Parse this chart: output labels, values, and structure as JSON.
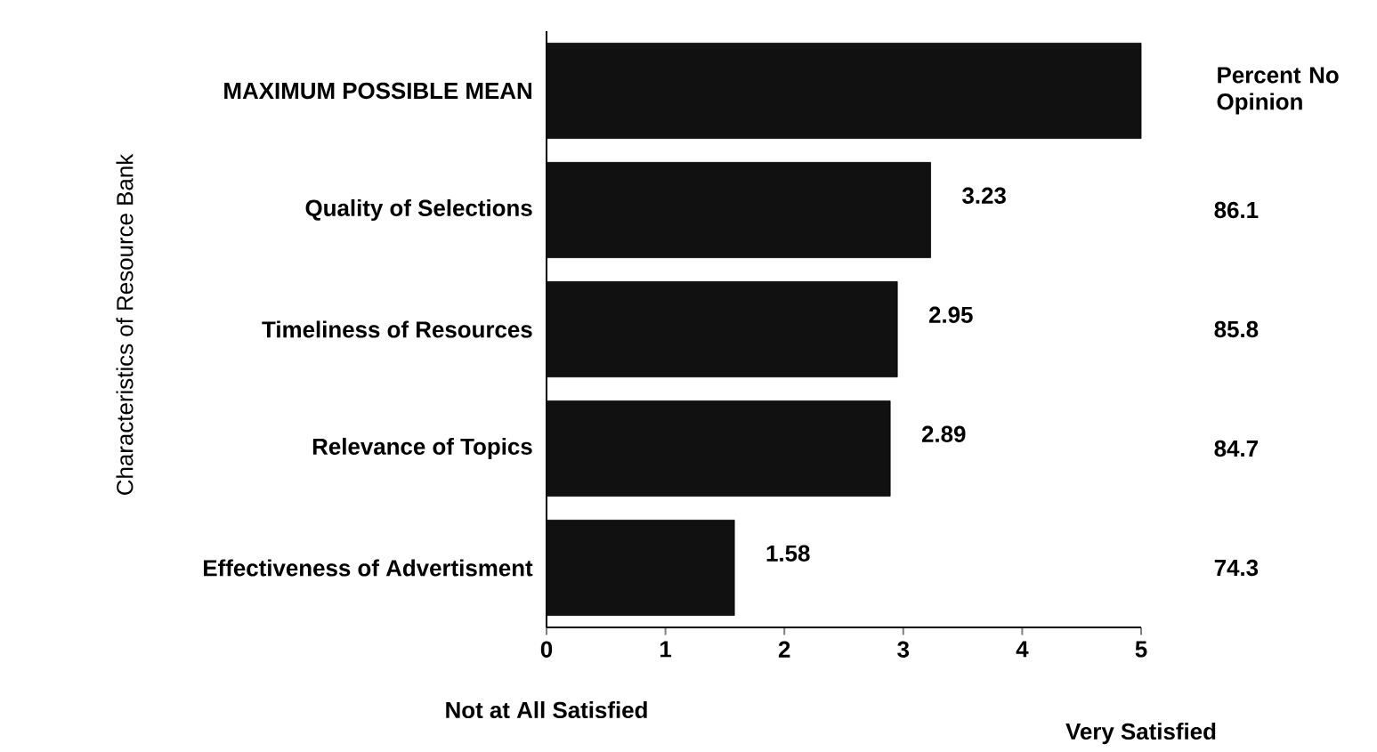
{
  "chart_data": {
    "type": "bar",
    "orientation": "horizontal",
    "ylabel": "Characteristics of Resource Bank",
    "categories": [
      "MAXIMUM POSSIBLE MEAN",
      "Quality of Selections",
      "Timeliness of Resources",
      "Relevance of Topics",
      "Effectiveness of Advertisment"
    ],
    "values": [
      5,
      3.23,
      2.95,
      2.89,
      1.58
    ],
    "color": "#111111",
    "value_labels": [
      null,
      "3.23",
      "2.95",
      "2.89",
      "1.58"
    ],
    "xlim": [
      0,
      5
    ],
    "xticks": [
      0,
      1,
      2,
      3,
      4,
      5
    ],
    "grid": false,
    "annotations": [
      "Percent No Opinion",
      "86.1",
      "85.8",
      "84.7",
      "74.3",
      "Not at All Satisfied",
      "Very Satisfied"
    ]
  }
}
